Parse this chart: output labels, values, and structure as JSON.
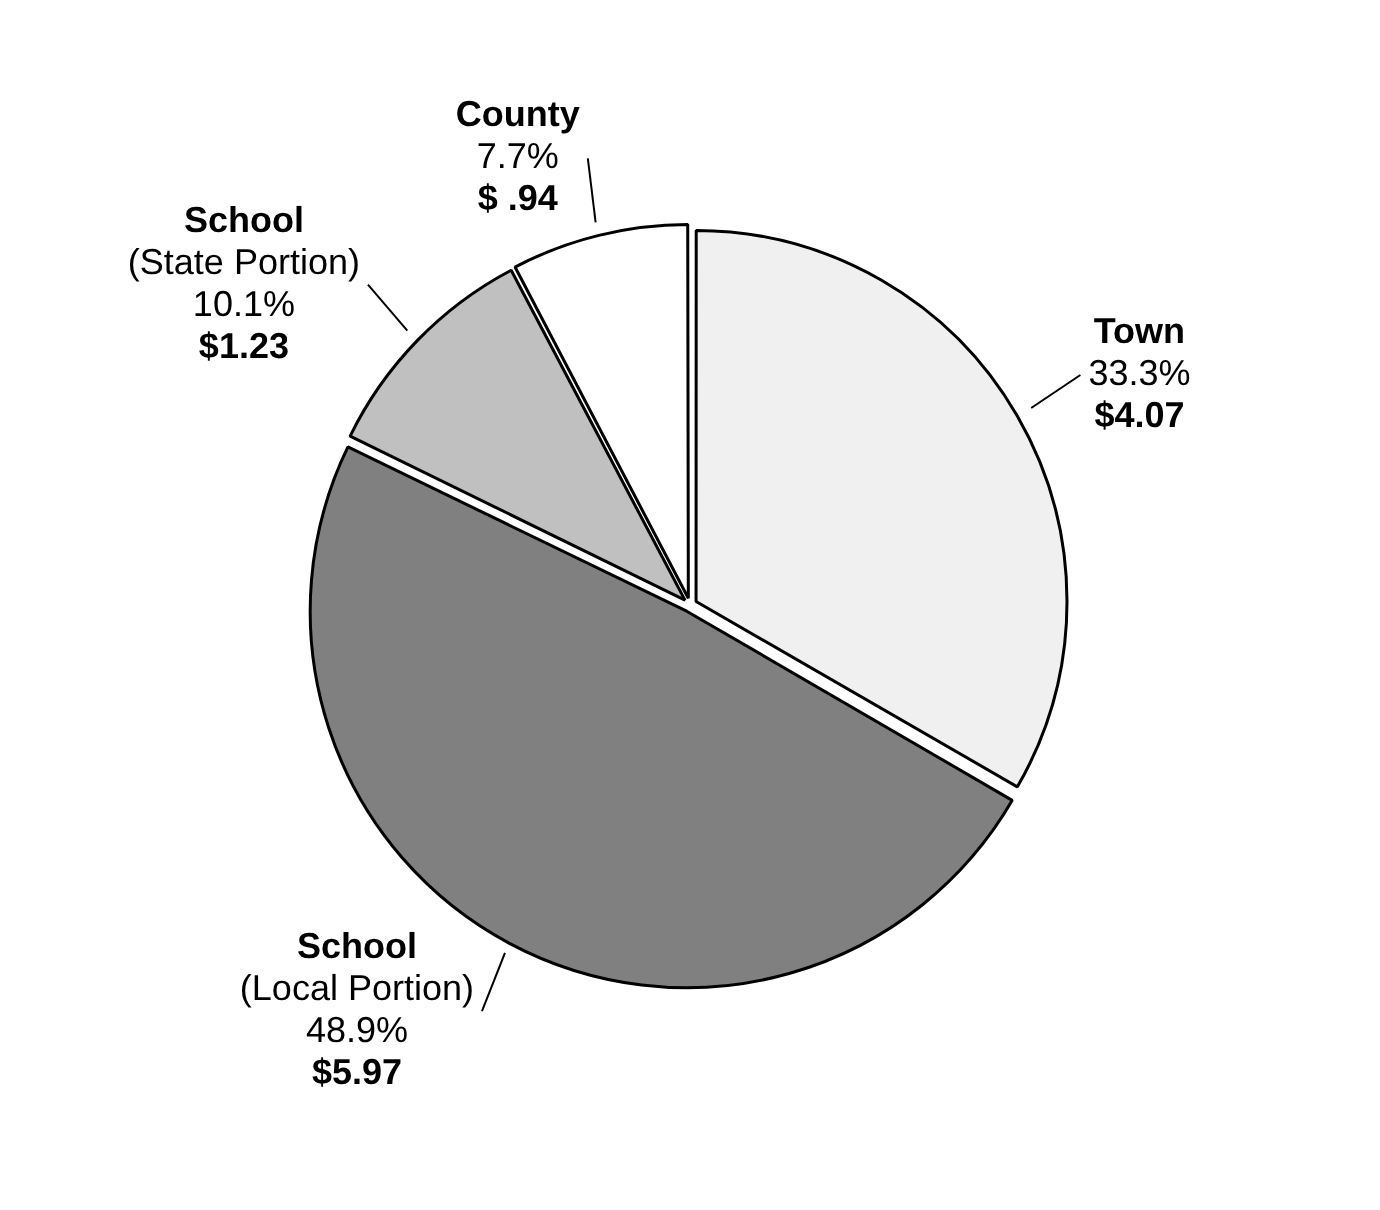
{
  "chart_data": {
    "type": "pie",
    "categories": [
      "Town",
      "School\n(Local Portion)",
      "School\n(State Portion)",
      "County"
    ],
    "values": [
      4.07,
      5.97,
      1.23,
      0.94
    ],
    "colors": [
      "#f0f0f0",
      "#808080",
      "#c0c0c0",
      "#ffffff"
    ],
    "value_labels": [
      "33.3%\n$4.07",
      "48.9%\n$5.97",
      "10.1%\n$1.23",
      "7.7%\n$ .94"
    ]
  }
}
